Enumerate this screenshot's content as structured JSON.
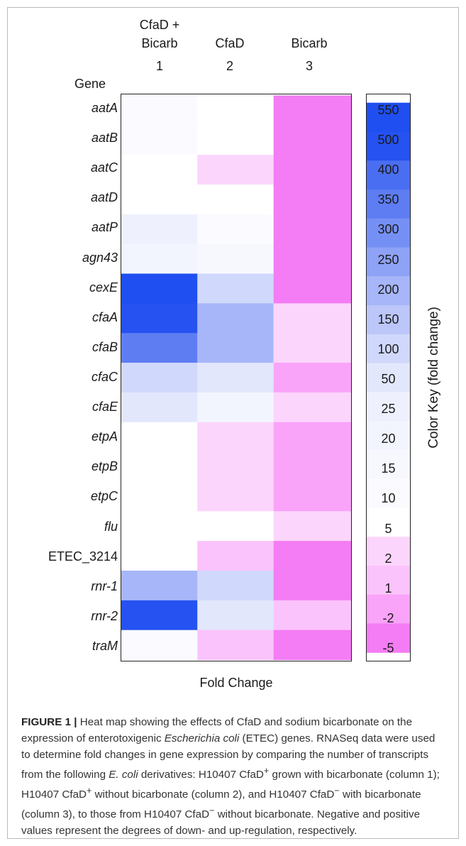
{
  "chart_data": {
    "type": "heatmap",
    "row_header": "Gene",
    "columns": [
      {
        "label": "CfaD +\nBicarb",
        "number": "1"
      },
      {
        "label": "CfaD",
        "number": "2"
      },
      {
        "label": "Bicarb",
        "number": "3"
      }
    ],
    "genes": [
      {
        "name": "aatA",
        "italic": true
      },
      {
        "name": "aatB",
        "italic": true
      },
      {
        "name": "aatC",
        "italic": true
      },
      {
        "name": "aatD",
        "italic": true
      },
      {
        "name": "aatP",
        "italic": true
      },
      {
        "name": "agn43",
        "italic": true
      },
      {
        "name": "cexE",
        "italic": true
      },
      {
        "name": "cfaA",
        "italic": true
      },
      {
        "name": "cfaB",
        "italic": true
      },
      {
        "name": "cfaC",
        "italic": true
      },
      {
        "name": "cfaE",
        "italic": true
      },
      {
        "name": "etpA",
        "italic": true
      },
      {
        "name": "etpB",
        "italic": true
      },
      {
        "name": "etpC",
        "italic": true
      },
      {
        "name": "flu",
        "italic": true
      },
      {
        "name": "ETEC_3214",
        "italic": false
      },
      {
        "name": "rnr-1",
        "italic": true
      },
      {
        "name": "rnr-2",
        "italic": true
      },
      {
        "name": "traM",
        "italic": true
      }
    ],
    "values": [
      [
        10,
        5,
        -5
      ],
      [
        10,
        5,
        -5
      ],
      [
        5,
        2,
        -5
      ],
      [
        5,
        5,
        -5
      ],
      [
        25,
        10,
        -5
      ],
      [
        20,
        15,
        -5
      ],
      [
        550,
        100,
        -5
      ],
      [
        500,
        200,
        2
      ],
      [
        350,
        200,
        2
      ],
      [
        100,
        50,
        -2
      ],
      [
        50,
        20,
        2
      ],
      [
        5,
        2,
        -2
      ],
      [
        5,
        2,
        -2
      ],
      [
        5,
        2,
        -2
      ],
      [
        5,
        5,
        2
      ],
      [
        5,
        1,
        -5
      ],
      [
        200,
        100,
        -5
      ],
      [
        450,
        50,
        1
      ],
      [
        10,
        1,
        -5
      ]
    ],
    "xlabel": "Fold Change",
    "color_key": {
      "title": "Color Key (fold change)",
      "levels": [
        550,
        500,
        400,
        350,
        300,
        250,
        200,
        150,
        100,
        50,
        25,
        20,
        15,
        10,
        5,
        2,
        1,
        -2,
        -5
      ],
      "colors": [
        "#1f4ff0",
        "#2552f0",
        "#4a6ef2",
        "#5e7df3",
        "#7590f5",
        "#8ea2f6",
        "#a7b6f8",
        "#bcc6f9",
        "#d0d8fb",
        "#e2e7fc",
        "#eef1fd",
        "#f3f5fe",
        "#f7f8fe",
        "#fbfbff",
        "#ffffff",
        "#fcd5fc",
        "#fbc3fb",
        "#f9a3f9",
        "#f47cf4"
      ]
    }
  },
  "caption": {
    "figure_label": "FIGURE 1 |",
    "text_1": " Heat map showing the effects of CfaD and sodium bicarbonate on the expression of enterotoxigenic ",
    "italic_1": "Escherichia coli",
    "text_2": " (ETEC) genes. RNASeq data were used to determine fold changes in gene expression by comparing the number of transcripts from the following ",
    "italic_2": "E. coli",
    "text_3": " derivatives: H10407 CfaD",
    "sup_plus_1": "+",
    "text_4": " grown with bicarbonate (column 1); H10407 CfaD",
    "sup_plus_2": "+",
    "text_5": " without bicarbonate (column 2), and H10407 CfaD",
    "sup_minus_1": "−",
    "text_6": " with bicarbonate (column 3), to those from H10407 CfaD",
    "sup_minus_2": "−",
    "text_7": " without bicarbonate. Negative and positive values represent the degrees of down- and up-regulation, respectively."
  }
}
